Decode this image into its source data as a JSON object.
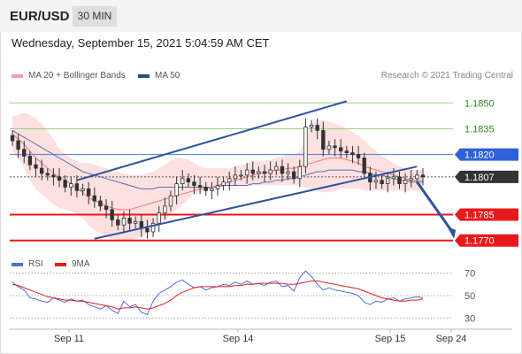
{
  "header": {
    "pair": "EUR/USD",
    "timeframe": "30 MIN"
  },
  "datetime": "Wednesday, September 15, 2021 5:04:59 AM CET",
  "legend": {
    "ma_bb": "MA 20 + Bollinger Bands",
    "ma50": "MA 50",
    "credit": "Research © 2021 Trading Central",
    "rsi": "RSI",
    "rsi_ma": "9MA"
  },
  "colors": {
    "ma20": "#f07a7a",
    "bollinger_fill": "#fde0e0",
    "ma50": "#5a6fa8",
    "resistance": "#9cd08a",
    "pivot": "#4a7ad8",
    "support": "#e8191b",
    "current": "#333333",
    "candle": "#333333",
    "channel": "#2f53a0",
    "rsi": "#4a6fd8",
    "rsi_ma": "#e02020"
  },
  "chart_data": [
    {
      "type": "line",
      "ylim": [
        1.1758,
        1.1862
      ],
      "x_ticks": [
        "Sep 11",
        "Sep 14",
        "Sep 15",
        "Sep 24"
      ],
      "levels": [
        {
          "label": "1.1850",
          "value": 1.185,
          "kind": "resistance"
        },
        {
          "label": "1.1835",
          "value": 1.1835,
          "kind": "resistance"
        },
        {
          "label": "1.1820",
          "value": 1.182,
          "kind": "pivot"
        },
        {
          "label": "1.1807",
          "value": 1.1807,
          "kind": "current"
        },
        {
          "label": "1.1785",
          "value": 1.1785,
          "kind": "support"
        },
        {
          "label": "1.1770",
          "value": 1.177,
          "kind": "support"
        }
      ],
      "price_close": [
        1.1828,
        1.1823,
        1.1819,
        1.1814,
        1.1812,
        1.1809,
        1.1808,
        1.1807,
        1.1805,
        1.1801,
        1.1803,
        1.1799,
        1.18,
        1.1796,
        1.1793,
        1.179,
        1.1788,
        1.1782,
        1.1779,
        1.1783,
        1.178,
        1.1781,
        1.1777,
        1.1775,
        1.178,
        1.1786,
        1.179,
        1.1796,
        1.1803,
        1.1806,
        1.1804,
        1.1802,
        1.1801,
        1.1799,
        1.18,
        1.1802,
        1.1804,
        1.1806,
        1.1808,
        1.1808,
        1.1811,
        1.1809,
        1.181,
        1.1809,
        1.1811,
        1.1813,
        1.1809,
        1.181,
        1.1806,
        1.1813,
        1.1836,
        1.1837,
        1.1834,
        1.1823,
        1.1825,
        1.1824,
        1.1822,
        1.1821,
        1.182,
        1.1818,
        1.1809,
        1.1804,
        1.1805,
        1.1803,
        1.1806,
        1.1807,
        1.1803,
        1.1805,
        1.1806,
        1.1808,
        1.1807
      ],
      "ma20": [
        1.1832,
        1.1829,
        1.1826,
        1.1822,
        1.1818,
        1.1815,
        1.1812,
        1.1809,
        1.1807,
        1.1805,
        1.1803,
        1.18,
        1.1798,
        1.1795,
        1.1793,
        1.1792,
        1.179,
        1.1789,
        1.1788,
        1.1788,
        1.1788,
        1.1789,
        1.179,
        1.1791,
        1.1792,
        1.1793,
        1.1794,
        1.1795,
        1.1796,
        1.1797,
        1.1798,
        1.1799,
        1.18,
        1.18,
        1.1801,
        1.1802,
        1.1803,
        1.1804,
        1.1805,
        1.1806,
        1.1807,
        1.1808,
        1.1809,
        1.1809,
        1.181,
        1.1811,
        1.1811,
        1.1812,
        1.1812,
        1.1813,
        1.1814,
        1.1815,
        1.1816,
        1.1817,
        1.1818,
        1.1818,
        1.1818,
        1.1817,
        1.1816,
        1.1815,
        1.1813,
        1.1812,
        1.1811,
        1.181,
        1.1809,
        1.1808,
        1.1807,
        1.1806,
        1.1805,
        1.1805,
        1.1805
      ],
      "bb_upper": [
        1.1842,
        1.1843,
        1.1844,
        1.1843,
        1.1841,
        1.1838,
        1.1834,
        1.1829,
        1.1823,
        1.182,
        1.1818,
        1.1816,
        1.1815,
        1.1815,
        1.1814,
        1.1813,
        1.1812,
        1.181,
        1.181,
        1.1809,
        1.1808,
        1.1808,
        1.1808,
        1.1809,
        1.181,
        1.1812,
        1.1814,
        1.1816,
        1.1818,
        1.1818,
        1.1817,
        1.1815,
        1.1813,
        1.1812,
        1.1812,
        1.1812,
        1.1812,
        1.1812,
        1.1813,
        1.1814,
        1.1815,
        1.1816,
        1.1816,
        1.1816,
        1.1817,
        1.1818,
        1.1819,
        1.182,
        1.182,
        1.1822,
        1.183,
        1.1838,
        1.184,
        1.184,
        1.1839,
        1.1838,
        1.1837,
        1.1835,
        1.1833,
        1.1831,
        1.1828,
        1.1825,
        1.1822,
        1.1819,
        1.1817,
        1.1815,
        1.1813,
        1.1812,
        1.1811,
        1.1811,
        1.1811
      ],
      "bb_lower": [
        1.1822,
        1.1818,
        1.1812,
        1.1805,
        1.18,
        1.1797,
        1.1794,
        1.1791,
        1.1789,
        1.1788,
        1.1787,
        1.1785,
        1.1783,
        1.1779,
        1.1776,
        1.1774,
        1.1772,
        1.1771,
        1.177,
        1.177,
        1.177,
        1.1771,
        1.1772,
        1.1774,
        1.1776,
        1.1779,
        1.1782,
        1.1785,
        1.1788,
        1.1791,
        1.1794,
        1.1797,
        1.1798,
        1.1799,
        1.18,
        1.1801,
        1.1802,
        1.1802,
        1.1802,
        1.1802,
        1.1802,
        1.1802,
        1.1802,
        1.1802,
        1.1802,
        1.1802,
        1.1802,
        1.1802,
        1.1802,
        1.1802,
        1.1801,
        1.18,
        1.1799,
        1.1798,
        1.1798,
        1.1799,
        1.18,
        1.18,
        1.18,
        1.18,
        1.1799,
        1.1799,
        1.1799,
        1.1799,
        1.1799,
        1.1799,
        1.1799,
        1.1799,
        1.1799,
        1.1799,
        1.1799
      ],
      "ma50": [
        1.1834,
        1.1832,
        1.183,
        1.1828,
        1.1826,
        1.1824,
        1.1822,
        1.182,
        1.1818,
        1.1816,
        1.1814,
        1.1812,
        1.181,
        1.1809,
        1.1808,
        1.1807,
        1.1806,
        1.1805,
        1.1804,
        1.1803,
        1.1802,
        1.1801,
        1.18,
        1.18,
        1.18,
        1.1801,
        1.1801,
        1.1801,
        1.1801,
        1.1801,
        1.1801,
        1.1801,
        1.1801,
        1.1801,
        1.1801,
        1.1801,
        1.1802,
        1.1802,
        1.1802,
        1.1802,
        1.1802,
        1.1803,
        1.1803,
        1.1804,
        1.1804,
        1.1805,
        1.1805,
        1.1806,
        1.1806,
        1.1807,
        1.1808,
        1.1809,
        1.181,
        1.181,
        1.1811,
        1.1811,
        1.1811,
        1.1811,
        1.1811,
        1.181,
        1.181,
        1.1809,
        1.1808,
        1.1808,
        1.1807,
        1.1806,
        1.1805,
        1.1805,
        1.1804,
        1.1804,
        1.1804
      ],
      "channel": {
        "upper": [
          [
            11,
            1.1805
          ],
          [
            57,
            1.1851
          ]
        ],
        "lower": [
          [
            14,
            1.1771
          ],
          [
            69,
            1.1813
          ]
        ]
      },
      "forecast_arrow": [
        [
          69,
          1.1804
        ],
        [
          75,
          1.1773
        ]
      ]
    },
    {
      "type": "line",
      "name": "RSI",
      "ylim": [
        20,
        80
      ],
      "y_ticks": [
        70,
        50,
        30
      ],
      "rsi": [
        62,
        58,
        55,
        48,
        47,
        45,
        44,
        48,
        46,
        44,
        47,
        45,
        46,
        42,
        40,
        38,
        41,
        37,
        34,
        45,
        40,
        42,
        35,
        33,
        45,
        52,
        55,
        58,
        62,
        64,
        60,
        57,
        58,
        55,
        57,
        58,
        60,
        59,
        62,
        60,
        63,
        60,
        61,
        59,
        62,
        63,
        58,
        59,
        54,
        66,
        72,
        67,
        60,
        55,
        57,
        55,
        54,
        53,
        52,
        50,
        44,
        42,
        45,
        44,
        47,
        48,
        45,
        47,
        48,
        49,
        48
      ],
      "rsi_ma": [
        60,
        59,
        57,
        55,
        53,
        51,
        49,
        48,
        47,
        46,
        46,
        45,
        45,
        44,
        43,
        42,
        41,
        40,
        38,
        39,
        39,
        40,
        39,
        38,
        39,
        41,
        43,
        46,
        50,
        53,
        55,
        57,
        58,
        58,
        58,
        58,
        58,
        58,
        59,
        59,
        60,
        60,
        61,
        61,
        61,
        61,
        61,
        60,
        60,
        61,
        62,
        63,
        63,
        62,
        61,
        60,
        59,
        58,
        57,
        56,
        54,
        52,
        50,
        48,
        47,
        46,
        45,
        45,
        46,
        46,
        47
      ]
    }
  ]
}
